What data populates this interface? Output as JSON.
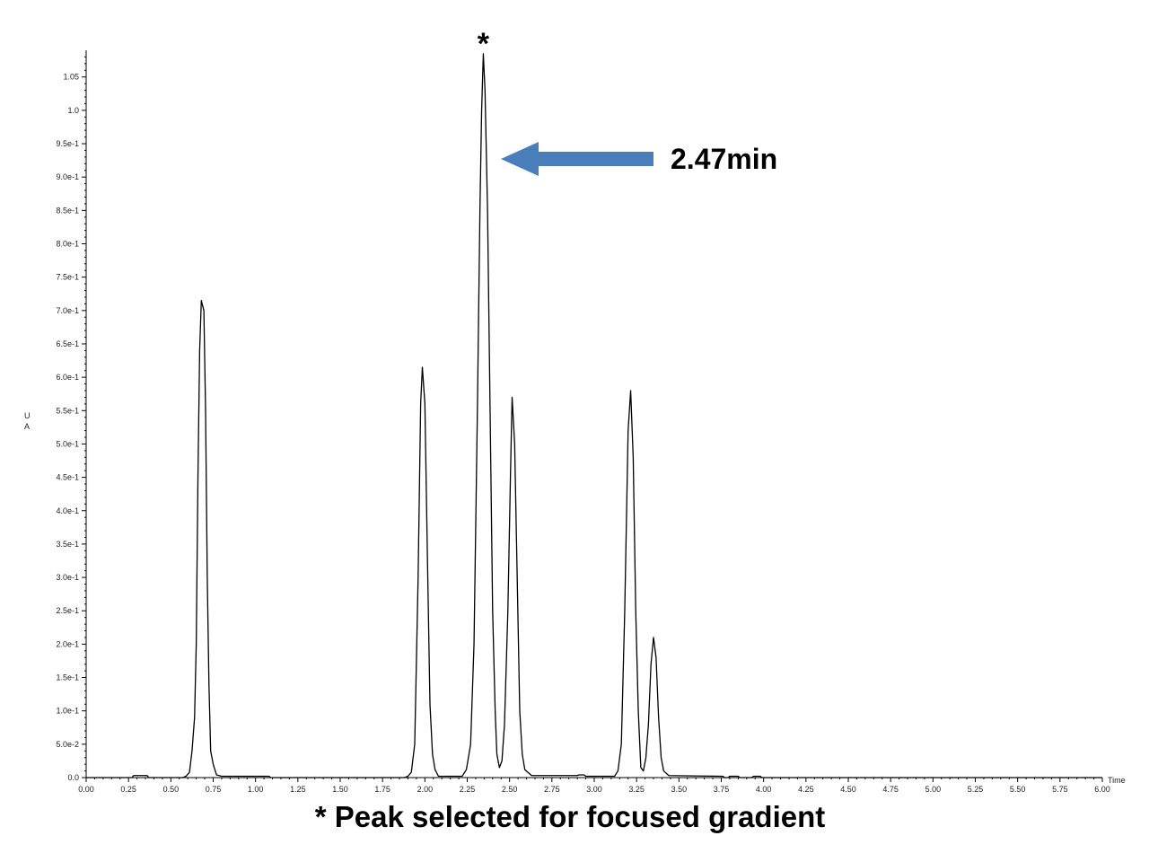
{
  "chart_data": {
    "type": "line",
    "xlabel": "Time",
    "ylabel": "UA",
    "xlim": [
      0.0,
      6.0
    ],
    "ylim": [
      0.0,
      1.09
    ],
    "grid": false,
    "x_tick_labels": [
      "0.00",
      "0.25",
      "0.50",
      "0.75",
      "1.00",
      "1.25",
      "1.50",
      "1.75",
      "2.00",
      "2.25",
      "2.50",
      "2.75",
      "3.00",
      "3.25",
      "3.50",
      "3.75",
      "4.00",
      "4.25",
      "4.50",
      "4.75",
      "5.00",
      "5.25",
      "5.50",
      "5.75",
      "6.00"
    ],
    "y_tick_labels": [
      "0.0",
      "5.0e-2",
      "1.0e-1",
      "1.5e-1",
      "2.0e-1",
      "2.5e-1",
      "3.0e-1",
      "3.5e-1",
      "4.0e-1",
      "4.5e-1",
      "5.0e-1",
      "5.5e-1",
      "6.0e-1",
      "6.5e-1",
      "7.0e-1",
      "7.5e-1",
      "8.0e-1",
      "8.5e-1",
      "9.0e-1",
      "9.5e-1",
      "1.0",
      "1.05"
    ],
    "series": [
      {
        "color": "#000000",
        "points": [
          [
            0.0,
            0.0
          ],
          [
            0.27,
            0.0
          ],
          [
            0.28,
            0.003
          ],
          [
            0.36,
            0.003
          ],
          [
            0.37,
            0.0
          ],
          [
            0.57,
            0.0
          ],
          [
            0.59,
            0.002
          ],
          [
            0.61,
            0.008
          ],
          [
            0.625,
            0.04
          ],
          [
            0.64,
            0.09
          ],
          [
            0.65,
            0.2
          ],
          [
            0.66,
            0.45
          ],
          [
            0.67,
            0.64
          ],
          [
            0.68,
            0.715
          ],
          [
            0.695,
            0.7
          ],
          [
            0.705,
            0.55
          ],
          [
            0.715,
            0.3
          ],
          [
            0.725,
            0.14
          ],
          [
            0.735,
            0.04
          ],
          [
            0.75,
            0.02
          ],
          [
            0.77,
            0.004
          ],
          [
            0.8,
            0.002
          ],
          [
            1.08,
            0.002
          ],
          [
            1.09,
            0.0
          ],
          [
            1.88,
            0.0
          ],
          [
            1.9,
            0.002
          ],
          [
            1.92,
            0.008
          ],
          [
            1.94,
            0.05
          ],
          [
            1.96,
            0.3
          ],
          [
            1.975,
            0.56
          ],
          [
            1.985,
            0.615
          ],
          [
            2.0,
            0.56
          ],
          [
            2.015,
            0.33
          ],
          [
            2.03,
            0.11
          ],
          [
            2.045,
            0.035
          ],
          [
            2.06,
            0.012
          ],
          [
            2.08,
            0.002
          ],
          [
            2.22,
            0.002
          ],
          [
            2.245,
            0.012
          ],
          [
            2.27,
            0.05
          ],
          [
            2.29,
            0.2
          ],
          [
            2.31,
            0.55
          ],
          [
            2.325,
            0.85
          ],
          [
            2.335,
            1.0
          ],
          [
            2.345,
            1.085
          ],
          [
            2.355,
            1.03
          ],
          [
            2.37,
            0.85
          ],
          [
            2.385,
            0.55
          ],
          [
            2.4,
            0.25
          ],
          [
            2.415,
            0.1
          ],
          [
            2.425,
            0.035
          ],
          [
            2.44,
            0.015
          ],
          [
            2.455,
            0.025
          ],
          [
            2.47,
            0.08
          ],
          [
            2.49,
            0.25
          ],
          [
            2.505,
            0.45
          ],
          [
            2.515,
            0.57
          ],
          [
            2.53,
            0.5
          ],
          [
            2.545,
            0.3
          ],
          [
            2.56,
            0.1
          ],
          [
            2.575,
            0.035
          ],
          [
            2.59,
            0.012
          ],
          [
            2.63,
            0.003
          ],
          [
            2.9,
            0.003
          ],
          [
            2.91,
            0.004
          ],
          [
            2.94,
            0.004
          ],
          [
            2.95,
            0.002
          ],
          [
            3.12,
            0.002
          ],
          [
            3.14,
            0.01
          ],
          [
            3.16,
            0.05
          ],
          [
            3.18,
            0.25
          ],
          [
            3.2,
            0.52
          ],
          [
            3.215,
            0.58
          ],
          [
            3.23,
            0.48
          ],
          [
            3.245,
            0.25
          ],
          [
            3.26,
            0.1
          ],
          [
            3.275,
            0.015
          ],
          [
            3.29,
            0.01
          ],
          [
            3.305,
            0.03
          ],
          [
            3.32,
            0.08
          ],
          [
            3.335,
            0.17
          ],
          [
            3.35,
            0.21
          ],
          [
            3.365,
            0.18
          ],
          [
            3.38,
            0.09
          ],
          [
            3.395,
            0.03
          ],
          [
            3.41,
            0.01
          ],
          [
            3.44,
            0.003
          ],
          [
            3.76,
            0.002
          ],
          [
            3.77,
            0.0
          ],
          [
            3.79,
            0.0
          ],
          [
            3.8,
            0.002
          ],
          [
            3.85,
            0.002
          ],
          [
            3.86,
            0.0
          ],
          [
            3.93,
            0.0
          ],
          [
            3.94,
            0.002
          ],
          [
            3.98,
            0.002
          ],
          [
            3.99,
            0.0
          ],
          [
            6.0,
            0.0
          ]
        ]
      }
    ],
    "annotations": {
      "peak_marker": "*",
      "peak_marker_x": 2.345,
      "arrow_label": "2.47min",
      "arrow_color": "#4a7ebb",
      "caption": "* Peak selected for focused gradient"
    }
  }
}
